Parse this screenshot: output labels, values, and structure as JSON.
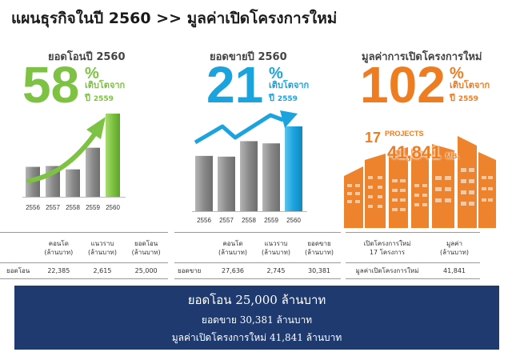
{
  "title": "แผนธุรกิจในปี 2560 >> มูลค่าเปิดโครงการใหม่",
  "colors": {
    "green": "#7dc242",
    "blue": "#1ba3de",
    "orange": "#ee7d22",
    "navy": "#1f3a6e",
    "bar_gray": "#8a8a8a"
  },
  "transfer": {
    "heading": "ยอดโอนปี 2560",
    "big_number": "58",
    "percent_sign": "%",
    "growth_line1": "เติบโตจาก",
    "growth_year_prefix": "ปี",
    "growth_year": "2559",
    "arrow_icon": "up-trend-arrow-icon",
    "table": {
      "headers": [
        "คอนโด\n(ล้านบาท)",
        "แนวราบ\n(ล้านบาท)",
        "ยอดโอน\n(ล้านบาท)"
      ],
      "row_label": "ยอดโอน",
      "values": [
        "22,385",
        "2,615",
        "25,000"
      ]
    }
  },
  "presales": {
    "heading": "ยอดขายปี 2560",
    "big_number": "21",
    "percent_sign": "%",
    "growth_line1": "เติบโตจาก",
    "growth_year_prefix": "ปี",
    "growth_year": "2559",
    "arrow_icon": "up-trend-arrow-icon",
    "table": {
      "headers": [
        "คอนโด\n(ล้านบาท)",
        "แนวราบ\n(ล้านบาท)",
        "ยอดขาย\n(ล้านบาท)"
      ],
      "row_label": "ยอดขาย",
      "values": [
        "27,636",
        "2,745",
        "30,381"
      ]
    }
  },
  "launch": {
    "heading": "มูลค่าการเปิดโครงการใหม่",
    "big_number": "102",
    "percent_sign": "%",
    "growth_line1": "เติบโตจาก",
    "growth_year_prefix": "ปี",
    "growth_year": "2559",
    "projects_count": "17",
    "projects_word": "PROJECTS",
    "value": "41,841",
    "value_unit": "MB.",
    "buildings_icon": "buildings-icon",
    "table": {
      "headers": [
        "เปิดโครงการใหม่\n17 โครงการ",
        "มูลค่า\n(ล้านบาท)"
      ],
      "row_label": "มูลค่าเปิดโครงการใหม่",
      "values": [
        "41,841"
      ]
    }
  },
  "chart_data": [
    {
      "type": "bar",
      "categories": [
        "2556",
        "2557",
        "2558",
        "2559",
        "2560"
      ],
      "values": [
        36,
        37,
        33,
        59,
        100
      ],
      "highlight_color": "#7dc242",
      "base_color": "#8a8a8a",
      "ylim": [
        0,
        100
      ],
      "grid": false
    },
    {
      "type": "bar",
      "categories": [
        "2556",
        "2557",
        "2558",
        "2559",
        "2560"
      ],
      "values": [
        75,
        74,
        95,
        92,
        115
      ],
      "highlight_color": "#1ba3de",
      "base_color": "#8a8a8a",
      "ylim": [
        0,
        115
      ],
      "grid": false
    }
  ],
  "banner": {
    "line1": "ยอดโอน 25,000 ล้านบาท",
    "line2": "ยอดขาย 30,381 ล้านบาท",
    "line3": "มูลค่าเปิดโครงการใหม่ 41,841 ล้านบาท"
  }
}
